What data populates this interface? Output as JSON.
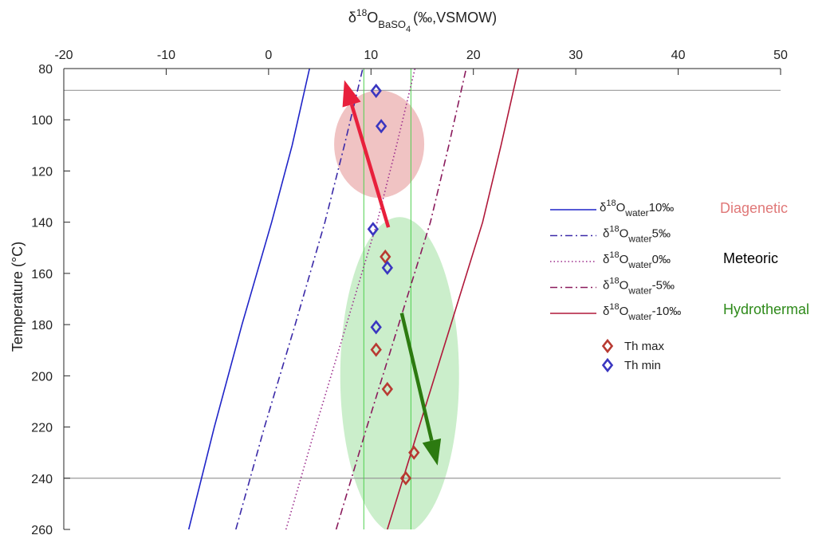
{
  "chart_data": {
    "type": "scatter",
    "x_label": {
      "delta": "δ",
      "sup": "18",
      "main": "O",
      "sub": "BaSO",
      "subsub": "4",
      "units": "(‰,VSMOW)"
    },
    "y_label": "Temperature (°C)",
    "xlim": [
      -20,
      50
    ],
    "ylim": [
      80,
      260
    ],
    "y_reversed": true,
    "x_axis_position": "top",
    "x_ticks": [
      "-20",
      "-10",
      "0",
      "10",
      "20",
      "30",
      "40",
      "50"
    ],
    "y_ticks": [
      "80",
      "100",
      "120",
      "140",
      "160",
      "180",
      "200",
      "220",
      "240",
      "260"
    ],
    "legend": {
      "placement": "right",
      "entries": [
        {
          "prefix": "δ",
          "sup": "18",
          "main": "O",
          "sub": "water",
          "value": "10‰",
          "color": "#1f24c8",
          "style": "solid"
        },
        {
          "prefix": "δ",
          "sup": "18",
          "main": "O",
          "sub": "water",
          "value": "5‰",
          "color": "#3b2aa8",
          "style": "dashdot"
        },
        {
          "prefix": "δ",
          "sup": "18",
          "main": "O",
          "sub": "water",
          "value": "0‰",
          "color": "#9b2c8c",
          "style": "dotted"
        },
        {
          "prefix": "δ",
          "sup": "18",
          "main": "O",
          "sub": "water",
          "value": "-5‰",
          "color": "#8a1a5c",
          "style": "dashdot"
        },
        {
          "prefix": "δ",
          "sup": "18",
          "main": "O",
          "sub": "water",
          "value": "-10‰",
          "color": "#b0183a",
          "style": "solid"
        }
      ],
      "markers": [
        {
          "label": "Th max",
          "color": "#b83a32"
        },
        {
          "label": "Th min",
          "color": "#3a36c0"
        }
      ]
    },
    "series": [
      {
        "name": "δ18Owater10‰",
        "color": "#1f24c8",
        "style": "solid",
        "x": [
          -7.8,
          -5.3,
          -2.6,
          0.3,
          2.3,
          4.0
        ],
        "y": [
          260,
          220,
          180,
          140,
          110,
          80
        ]
      },
      {
        "name": "δ18Owater5‰",
        "color": "#3b2aa8",
        "style": "dashdot",
        "x": [
          -3.2,
          -0.4,
          2.6,
          5.5,
          7.4,
          9.2
        ],
        "y": [
          260,
          220,
          180,
          140,
          110,
          80
        ]
      },
      {
        "name": "δ18Owater0‰",
        "color": "#9b2c8c",
        "style": "dotted",
        "x": [
          1.7,
          4.6,
          7.6,
          10.6,
          12.5,
          14.3
        ],
        "y": [
          260,
          220,
          180,
          140,
          110,
          80
        ]
      },
      {
        "name": "δ18Owater-5‰",
        "color": "#8a1a5c",
        "style": "dashdot",
        "x": [
          6.6,
          9.6,
          12.7,
          15.8,
          17.6,
          19.3
        ],
        "y": [
          260,
          220,
          180,
          140,
          110,
          80
        ]
      },
      {
        "name": "δ18Owater-10‰",
        "color": "#b0183a",
        "style": "solid",
        "x": [
          11.6,
          14.7,
          17.8,
          20.9,
          22.7,
          24.4
        ],
        "y": [
          260,
          220,
          180,
          140,
          110,
          80
        ]
      }
    ],
    "points": {
      "th_max": [
        [
          11.4,
          153.5
        ],
        [
          10.5,
          189.8
        ],
        [
          11.6,
          205.2
        ],
        [
          14.2,
          230
        ],
        [
          13.4,
          240
        ]
      ],
      "th_min": [
        [
          10.5,
          88.7
        ],
        [
          11.0,
          102.5
        ],
        [
          10.2,
          142.7
        ],
        [
          11.6,
          157.8
        ],
        [
          10.5,
          181
        ]
      ]
    },
    "reference_lines": {
      "y": [
        88.5,
        240
      ],
      "x": [
        9.3,
        13.9
      ]
    },
    "zones": [
      {
        "label": "Diagenetic",
        "color": "#e07878",
        "fill": "rgba(222,122,122,0.45)",
        "cx": 10.8,
        "cy": 109.5,
        "rx": 4.4,
        "ry": 21
      },
      {
        "label": "Meteoric",
        "color": "#000000"
      },
      {
        "label": "Hydrothermal",
        "color": "#2e8a1a",
        "fill": "rgba(130,215,130,0.42)",
        "cx": 12.8,
        "cy": 200,
        "rx": 5.8,
        "ry": 62
      }
    ],
    "arrows": [
      {
        "color": "#e8203c",
        "from": [
          11.7,
          142
        ],
        "to": [
          7.4,
          84.5
        ]
      },
      {
        "color": "#2c7a10",
        "from": [
          13.0,
          175.5
        ],
        "to": [
          16.5,
          235
        ]
      }
    ]
  }
}
